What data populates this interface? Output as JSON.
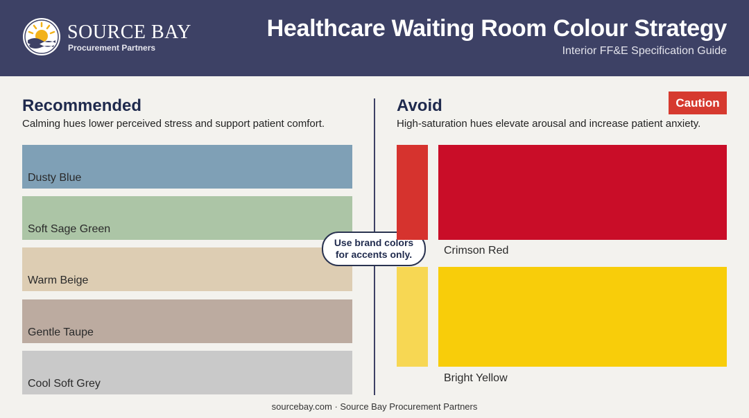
{
  "header": {
    "brand_name": "SOURCE BAY",
    "brand_sub": "Procurement Partners",
    "logo_icon": "sun-over-waves-icon",
    "title": "Healthcare Waiting Room Colour Strategy",
    "subtitle": "Interior FF&E Specification Guide"
  },
  "recommended": {
    "heading": "Recommended",
    "description": "Calming hues lower perceived stress and support patient comfort.",
    "swatches": [
      {
        "label": "Dusty Blue",
        "color": "#7fa0b6"
      },
      {
        "label": "Soft Sage Green",
        "color": "#acc5a6"
      },
      {
        "label": "Warm Beige",
        "color": "#ddcdb3"
      },
      {
        "label": "Gentle Taupe",
        "color": "#bcaba0"
      },
      {
        "label": "Cool Soft Grey",
        "color": "#c9c9c9"
      }
    ]
  },
  "callout": {
    "text": "Use brand colors for accents only."
  },
  "avoid": {
    "heading": "Avoid",
    "badge": "Caution",
    "description": "High-saturation hues elevate arousal and increase patient anxiety.",
    "swatches": [
      {
        "label": "Crimson Red",
        "color": "#c90d28",
        "chip_color": "#d6332e"
      },
      {
        "label": "Bright Yellow",
        "color": "#f8cd0a",
        "chip_color": "#f7d753"
      }
    ]
  },
  "footer": {
    "text": "sourcebay.com · Source Bay Procurement Partners"
  }
}
